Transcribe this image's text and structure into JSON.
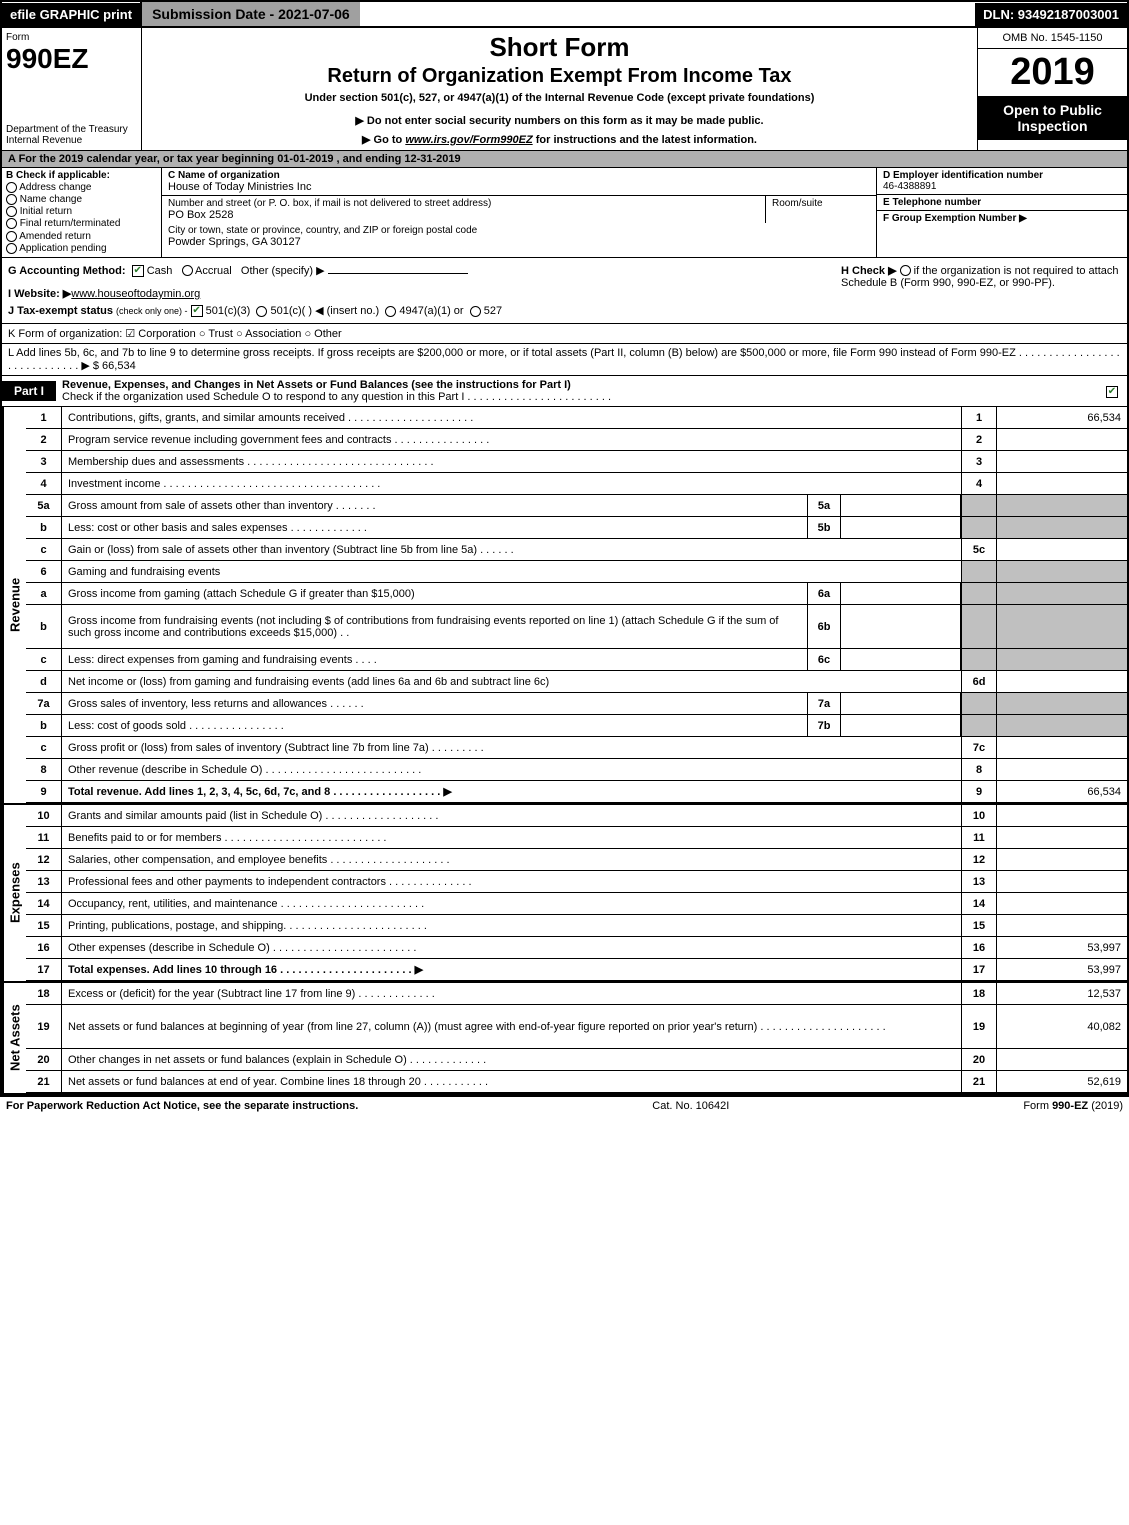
{
  "topbar": {
    "efile": "efile GRAPHIC print",
    "submission_date_label": "Submission Date - 2021-07-06",
    "dln": "DLN: 93492187003001"
  },
  "header": {
    "form_label": "Form",
    "form_number": "990EZ",
    "dept": "Department of the Treasury\nInternal Revenue",
    "title1": "Short Form",
    "title2": "Return of Organization Exempt From Income Tax",
    "subtitle": "Under section 501(c), 527, or 4947(a)(1) of the Internal Revenue Code (except private foundations)",
    "note1": "▶ Do not enter social security numbers on this form as it may be made public.",
    "note2_pre": "▶ Go to ",
    "note2_url": "www.irs.gov/Form990EZ",
    "note2_post": " for instructions and the latest information.",
    "omb": "OMB No. 1545-1150",
    "year": "2019",
    "inspection": "Open to Public Inspection"
  },
  "row_a": "A For the 2019 calendar year, or tax year beginning 01-01-2019 , and ending 12-31-2019",
  "col_b": {
    "label": "B  Check if applicable:",
    "options": [
      "Address change",
      "Name change",
      "Initial return",
      "Final return/terminated",
      "Amended return",
      "Application pending"
    ]
  },
  "col_c": {
    "name_label": "C Name of organization",
    "name": "House of Today Ministries Inc",
    "street_label": "Number and street (or P. O. box, if mail is not delivered to street address)",
    "street": "PO Box 2528",
    "room_label": "Room/suite",
    "room": "",
    "city_label": "City or town, state or province, country, and ZIP or foreign postal code",
    "city": "Powder Springs, GA  30127"
  },
  "col_de": {
    "d_label": "D Employer identification number",
    "d_val": "46-4388891",
    "e_label": "E Telephone number",
    "e_val": "",
    "f_label": "F Group Exemption Number  ▶",
    "f_val": ""
  },
  "block_gh": {
    "g_label": "G Accounting Method:",
    "g_cash": "Cash",
    "g_accrual": "Accrual",
    "g_other": "Other (specify) ▶",
    "i_label": "I Website: ▶",
    "i_val": "www.houseoftodaymin.org",
    "j_label": "J Tax-exempt status",
    "j_sub": "(check only one) -",
    "j_opts": [
      "501(c)(3)",
      "501(c)(  ) ◀ (insert no.)",
      "4947(a)(1) or",
      "527"
    ],
    "h_label": "H  Check ▶",
    "h_text": "if the organization is not required to attach Schedule B (Form 990, 990-EZ, or 990-PF)."
  },
  "line_k": "K Form of organization:   ☑ Corporation   ○ Trust   ○ Association   ○ Other",
  "line_l": "L Add lines 5b, 6c, and 7b to line 9 to determine gross receipts. If gross receipts are $200,000 or more, or if total assets (Part II, column (B) below) are $500,000 or more, file Form 990 instead of Form 990-EZ  . . . . . . . . . . . . . . . . . . . . . . . . . . . . .  ▶ $ 66,534",
  "part1": {
    "label": "Part I",
    "title": "Revenue, Expenses, and Changes in Net Assets or Fund Balances (see the instructions for Part I)",
    "check_note": "Check if the organization used Schedule O to respond to any question in this Part I . . . . . . . . . . . . . . . . . . . . . . . ."
  },
  "sections": {
    "revenue_label": "Revenue",
    "expenses_label": "Expenses",
    "netassets_label": "Net Assets"
  },
  "rows": [
    {
      "n": "1",
      "d": "Contributions, gifts, grants, and similar amounts received . . . . . . . . . . . . . . . . . . . . .",
      "rn": "1",
      "rv": "66,534"
    },
    {
      "n": "2",
      "d": "Program service revenue including government fees and contracts . . . . . . . . . . . . . . . .",
      "rn": "2",
      "rv": ""
    },
    {
      "n": "3",
      "d": "Membership dues and assessments . . . . . . . . . . . . . . . . . . . . . . . . . . . . . . .",
      "rn": "3",
      "rv": ""
    },
    {
      "n": "4",
      "d": "Investment income . . . . . . . . . . . . . . . . . . . . . . . . . . . . . . . . . . . .",
      "rn": "4",
      "rv": ""
    },
    {
      "n": "5a",
      "d": "Gross amount from sale of assets other than inventory . . . . . . .",
      "mn": "5a",
      "mv": "",
      "shade": true
    },
    {
      "n": "b",
      "d": "Less: cost or other basis and sales expenses . . . . . . . . . . . . .",
      "mn": "5b",
      "mv": "",
      "shade": true
    },
    {
      "n": "c",
      "d": "Gain or (loss) from sale of assets other than inventory (Subtract line 5b from line 5a) . . . . . .",
      "rn": "5c",
      "rv": ""
    },
    {
      "n": "6",
      "d": "Gaming and fundraising events",
      "shade": true,
      "noright": true
    },
    {
      "n": "a",
      "d": "Gross income from gaming (attach Schedule G if greater than $15,000)",
      "mn": "6a",
      "mv": "",
      "shade": true
    },
    {
      "n": "b",
      "d": "Gross income from fundraising events (not including $                  of contributions from fundraising events reported on line 1) (attach Schedule G if the sum of such gross income and contributions exceeds $15,000)   . .",
      "mn": "6b",
      "mv": "",
      "shade": true,
      "tall": true
    },
    {
      "n": "c",
      "d": "Less: direct expenses from gaming and fundraising events   . . . .",
      "mn": "6c",
      "mv": "",
      "shade": true
    },
    {
      "n": "d",
      "d": "Net income or (loss) from gaming and fundraising events (add lines 6a and 6b and subtract line 6c)",
      "rn": "6d",
      "rv": ""
    },
    {
      "n": "7a",
      "d": "Gross sales of inventory, less returns and allowances . . . . . .",
      "mn": "7a",
      "mv": "",
      "shade": true
    },
    {
      "n": "b",
      "d": "Less: cost of goods sold         . . . . . . . . . . . . . . . .",
      "mn": "7b",
      "mv": "",
      "shade": true
    },
    {
      "n": "c",
      "d": "Gross profit or (loss) from sales of inventory (Subtract line 7b from line 7a) . . . . . . . . .",
      "rn": "7c",
      "rv": ""
    },
    {
      "n": "8",
      "d": "Other revenue (describe in Schedule O) . . . . . . . . . . . . . . . . . . . . . . . . . .",
      "rn": "8",
      "rv": ""
    },
    {
      "n": "9",
      "d": "Total revenue. Add lines 1, 2, 3, 4, 5c, 6d, 7c, and 8  . . . . . . . . . . . . . . . . . .  ▶",
      "rn": "9",
      "rv": "66,534",
      "bold": true
    }
  ],
  "rows_exp": [
    {
      "n": "10",
      "d": "Grants and similar amounts paid (list in Schedule O) . . . . . . . . . . . . . . . . . . .",
      "rn": "10",
      "rv": ""
    },
    {
      "n": "11",
      "d": "Benefits paid to or for members      . . . . . . . . . . . . . . . . . . . . . . . . . . .",
      "rn": "11",
      "rv": ""
    },
    {
      "n": "12",
      "d": "Salaries, other compensation, and employee benefits . . . . . . . . . . . . . . . . . . . .",
      "rn": "12",
      "rv": ""
    },
    {
      "n": "13",
      "d": "Professional fees and other payments to independent contractors . . . . . . . . . . . . . .",
      "rn": "13",
      "rv": ""
    },
    {
      "n": "14",
      "d": "Occupancy, rent, utilities, and maintenance . . . . . . . . . . . . . . . . . . . . . . . .",
      "rn": "14",
      "rv": ""
    },
    {
      "n": "15",
      "d": "Printing, publications, postage, and shipping. . . . . . . . . . . . . . . . . . . . . . . .",
      "rn": "15",
      "rv": ""
    },
    {
      "n": "16",
      "d": "Other expenses (describe in Schedule O)     . . . . . . . . . . . . . . . . . . . . . . . .",
      "rn": "16",
      "rv": "53,997"
    },
    {
      "n": "17",
      "d": "Total expenses. Add lines 10 through 16     . . . . . . . . . . . . . . . . . . . . . .  ▶",
      "rn": "17",
      "rv": "53,997",
      "bold": true
    }
  ],
  "rows_net": [
    {
      "n": "18",
      "d": "Excess or (deficit) for the year (Subtract line 17 from line 9)        . . . . . . . . . . . . .",
      "rn": "18",
      "rv": "12,537"
    },
    {
      "n": "19",
      "d": "Net assets or fund balances at beginning of year (from line 27, column (A)) (must agree with end-of-year figure reported on prior year's return) . . . . . . . . . . . . . . . . . . . . .",
      "rn": "19",
      "rv": "40,082",
      "tall": true
    },
    {
      "n": "20",
      "d": "Other changes in net assets or fund balances (explain in Schedule O) . . . . . . . . . . . . .",
      "rn": "20",
      "rv": ""
    },
    {
      "n": "21",
      "d": "Net assets or fund balances at end of year. Combine lines 18 through 20 . . . . . . . . . . .",
      "rn": "21",
      "rv": "52,619"
    }
  ],
  "footer": {
    "left": "For Paperwork Reduction Act Notice, see the separate instructions.",
    "center": "Cat. No. 10642I",
    "right": "Form 990-EZ (2019)"
  },
  "colors": {
    "black": "#000000",
    "gray_header": "#a0a0a0",
    "gray_row": "#b0b0b0",
    "gray_shade": "#c0c0c0",
    "white": "#ffffff",
    "check_green": "#2a7a2a"
  },
  "fontsizes": {
    "base": 11,
    "small": 10,
    "form_number": 28,
    "year": 38,
    "title1": 26,
    "title2": 20
  }
}
